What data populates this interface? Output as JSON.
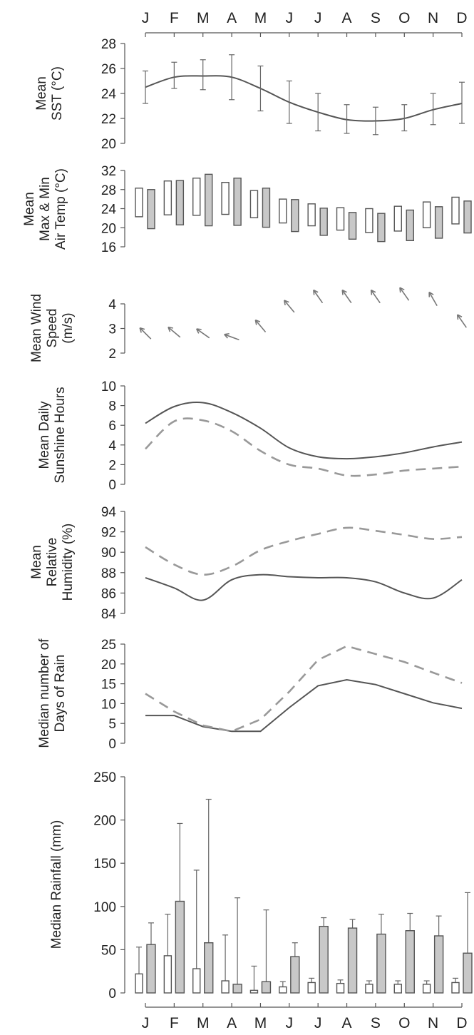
{
  "chart_data": [
    {
      "type": "line",
      "ylabel": [
        "Mean",
        "SST (°C)"
      ],
      "ylim": [
        20,
        28
      ],
      "yticks": [
        "20",
        "22",
        "24",
        "26",
        "28"
      ],
      "categories": [
        "J",
        "F",
        "M",
        "A",
        "M",
        "J",
        "J",
        "A",
        "S",
        "O",
        "N",
        "D"
      ],
      "series": [
        {
          "values": [
            24.5,
            25.3,
            25.4,
            25.3,
            24.4,
            23.3,
            22.5,
            21.9,
            21.8,
            22.0,
            22.7,
            23.2
          ],
          "error_low": [
            23.2,
            24.4,
            24.3,
            23.5,
            22.6,
            21.6,
            21.0,
            20.8,
            20.7,
            21.0,
            21.5,
            21.6
          ],
          "error_high": [
            25.8,
            26.5,
            26.7,
            27.1,
            26.2,
            25.0,
            24.0,
            23.1,
            22.9,
            23.1,
            24.0,
            24.9
          ]
        }
      ]
    },
    {
      "type": "bar",
      "ylabel": [
        "Mean",
        "Max & Min",
        "Air Temp (°C)"
      ],
      "ylim": [
        16,
        32
      ],
      "yticks": [
        "16",
        "20",
        "24",
        "28",
        "32"
      ],
      "categories": [
        "J",
        "F",
        "M",
        "A",
        "M",
        "J",
        "J",
        "A",
        "S",
        "O",
        "N",
        "D"
      ],
      "series": [
        {
          "name": "open",
          "low": [
            22.3,
            22.7,
            22.6,
            22.8,
            22.1,
            21.0,
            20.4,
            19.5,
            19.0,
            19.3,
            20.0,
            20.8
          ],
          "high": [
            28.3,
            29.8,
            30.4,
            29.5,
            27.8,
            26.0,
            25.0,
            24.2,
            24.0,
            24.5,
            25.4,
            26.4
          ]
        },
        {
          "name": "grey",
          "low": [
            19.8,
            20.6,
            20.4,
            20.5,
            20.1,
            19.2,
            18.4,
            17.6,
            17.1,
            17.3,
            17.8,
            18.9
          ],
          "high": [
            28.0,
            29.9,
            31.2,
            30.4,
            28.3,
            25.9,
            24.1,
            23.2,
            23.0,
            23.7,
            24.4,
            25.6
          ]
        }
      ]
    },
    {
      "type": "scatter",
      "ylabel": [
        "Mean Wind",
        "Speed",
        "(m/s)"
      ],
      "ylim": [
        2,
        4
      ],
      "yticks": [
        "2",
        "3",
        "4"
      ],
      "categories": [
        "J",
        "F",
        "M",
        "A",
        "M",
        "J",
        "J",
        "A",
        "S",
        "O",
        "N",
        "D"
      ],
      "values": [
        2.8,
        2.85,
        2.8,
        2.65,
        3.1,
        3.9,
        4.3,
        4.3,
        4.3,
        4.4,
        4.2,
        3.3
      ],
      "direction_deg": [
        135,
        140,
        145,
        160,
        130,
        130,
        125,
        125,
        125,
        125,
        120,
        125
      ]
    },
    {
      "type": "line",
      "ylabel": [
        "Mean Daily",
        "Sunshine Hours"
      ],
      "ylim": [
        0,
        10
      ],
      "yticks": [
        "0",
        "2",
        "4",
        "6",
        "8",
        "10"
      ],
      "categories": [
        "J",
        "F",
        "M",
        "A",
        "M",
        "J",
        "J",
        "A",
        "S",
        "O",
        "N",
        "D"
      ],
      "series": [
        {
          "style": "solid",
          "values": [
            6.2,
            7.9,
            8.3,
            7.3,
            5.7,
            3.7,
            2.8,
            2.6,
            2.8,
            3.2,
            3.8,
            4.3
          ]
        },
        {
          "style": "dashed",
          "values": [
            3.6,
            6.4,
            6.5,
            5.4,
            3.4,
            2.0,
            1.6,
            0.9,
            1.0,
            1.4,
            1.6,
            1.8
          ]
        }
      ]
    },
    {
      "type": "line",
      "ylabel": [
        "Mean",
        "Relative",
        "Humidity (%)"
      ],
      "ylim": [
        84,
        94
      ],
      "yticks": [
        "84",
        "86",
        "88",
        "90",
        "92",
        "94"
      ],
      "categories": [
        "J",
        "F",
        "M",
        "A",
        "M",
        "J",
        "J",
        "A",
        "S",
        "O",
        "N",
        "D"
      ],
      "series": [
        {
          "style": "solid",
          "values": [
            87.5,
            86.5,
            85.3,
            87.3,
            87.8,
            87.6,
            87.5,
            87.5,
            87.1,
            86.0,
            85.5,
            87.3
          ]
        },
        {
          "style": "dashed",
          "values": [
            90.5,
            88.8,
            87.8,
            88.6,
            90.2,
            91.1,
            91.8,
            92.4,
            92.1,
            91.7,
            91.3,
            91.5
          ]
        }
      ]
    },
    {
      "type": "line",
      "ylabel": [
        "Median number of",
        "Days of Rain"
      ],
      "ylim": [
        0,
        25
      ],
      "yticks": [
        "0",
        "5",
        "10",
        "15",
        "20",
        "25"
      ],
      "categories": [
        "J",
        "F",
        "M",
        "A",
        "M",
        "J",
        "J",
        "A",
        "S",
        "O",
        "N",
        "D"
      ],
      "series": [
        {
          "style": "solid",
          "values": [
            7.0,
            7.0,
            4.2,
            3.0,
            3.0,
            9.0,
            14.5,
            16.0,
            14.8,
            12.5,
            10.2,
            8.8
          ]
        },
        {
          "style": "dashed",
          "values": [
            12.5,
            8.0,
            4.5,
            3.0,
            6.0,
            13.0,
            21.0,
            24.5,
            22.5,
            20.5,
            17.8,
            15.2
          ]
        }
      ]
    },
    {
      "type": "bar",
      "ylabel": [
        "Median Rainfall (mm)"
      ],
      "ylim": [
        0,
        250
      ],
      "yticks": [
        "0",
        "50",
        "100",
        "150",
        "200",
        "250"
      ],
      "categories": [
        "J",
        "F",
        "M",
        "A",
        "M",
        "J",
        "J",
        "A",
        "S",
        "O",
        "N",
        "D"
      ],
      "series": [
        {
          "name": "open",
          "values": [
            22,
            43,
            28,
            14,
            3,
            7,
            12,
            11,
            10,
            10,
            10,
            12
          ],
          "error_high": [
            53,
            91,
            142,
            67,
            31,
            13,
            17,
            15,
            14,
            14,
            14,
            17
          ]
        },
        {
          "name": "grey",
          "values": [
            56,
            106,
            58,
            10,
            13,
            42,
            77,
            75,
            68,
            72,
            66,
            46
          ],
          "error_high": [
            81,
            196,
            224,
            110,
            96,
            58,
            87,
            85,
            91,
            92,
            89,
            116
          ]
        }
      ]
    }
  ]
}
